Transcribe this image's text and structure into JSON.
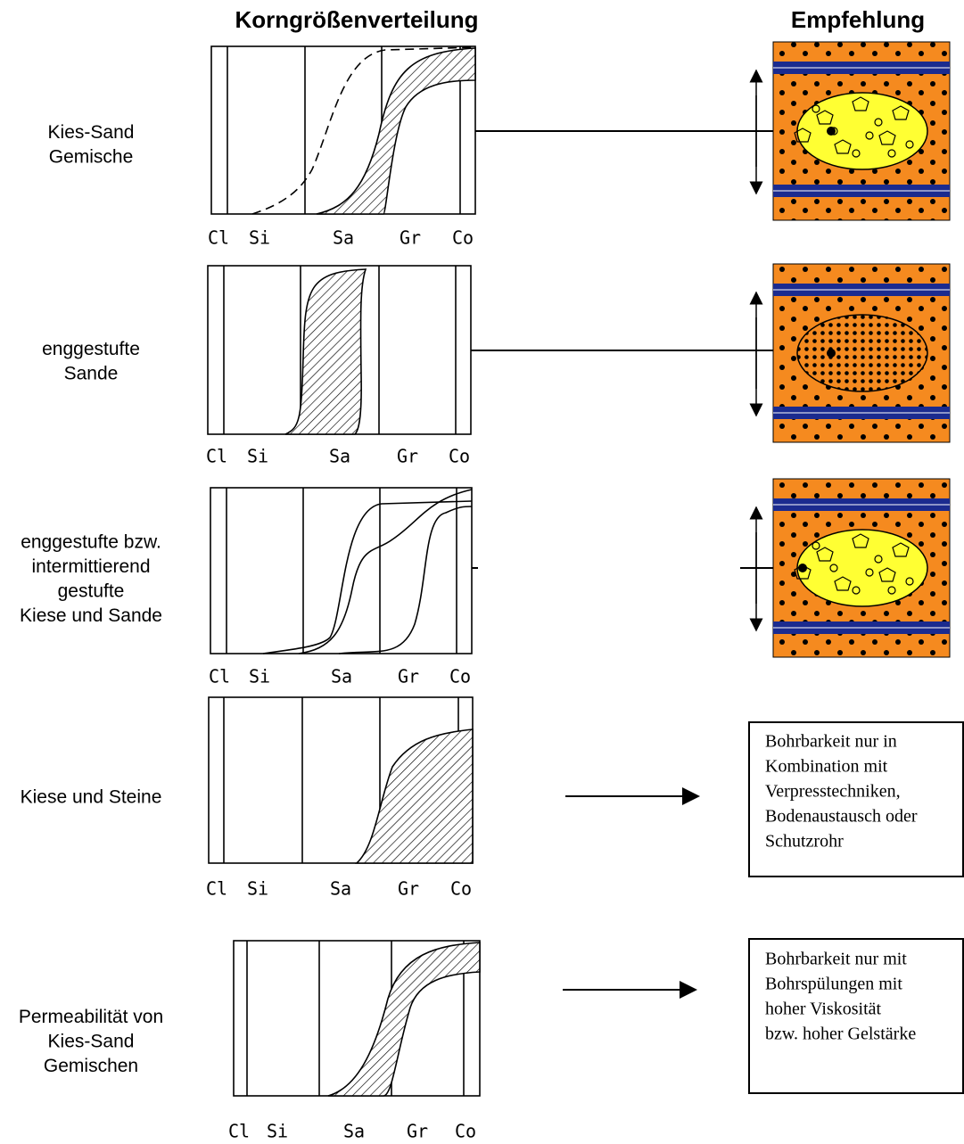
{
  "header": {
    "title_left": "Korngrößenverteilung",
    "title_right": "Empfehlung"
  },
  "rows": [
    {
      "label": [
        "Kies-Sand",
        "Gemische"
      ],
      "axis": [
        "Cl",
        "Si",
        "Sa",
        "Gr",
        "Co"
      ]
    },
    {
      "label": [
        "enggestufte",
        "Sande"
      ],
      "axis": [
        "Cl",
        "Si",
        "Sa",
        "Gr",
        "Co"
      ]
    },
    {
      "label": [
        "enggestufte bzw.",
        "intermittierend",
        "gestufte",
        "Kiese und Sande"
      ],
      "axis": [
        "Cl",
        "Si",
        "Sa",
        "Gr",
        "Co"
      ]
    },
    {
      "label": [
        "Kiese und Steine"
      ],
      "axis": [
        "Cl",
        "Si",
        "Sa",
        "Gr",
        "Co"
      ],
      "recommendation": [
        "Bohrbarkeit nur in",
        "Kombination mit",
        "Verpresstechniken,",
        "Bodenaustausch oder",
        "Schutzrohr"
      ]
    },
    {
      "label": [
        "Permeabilität von",
        "Kies-Sand",
        "Gemischen"
      ],
      "axis": [
        "Cl",
        "Si",
        "Sa",
        "Gr",
        "Co"
      ],
      "recommendation": [
        "Bohrbarkeit nur mit",
        "Bohrspülungen mit",
        "hoher Viskosität",
        "bzw. hoher Gelstärke"
      ]
    }
  ]
}
